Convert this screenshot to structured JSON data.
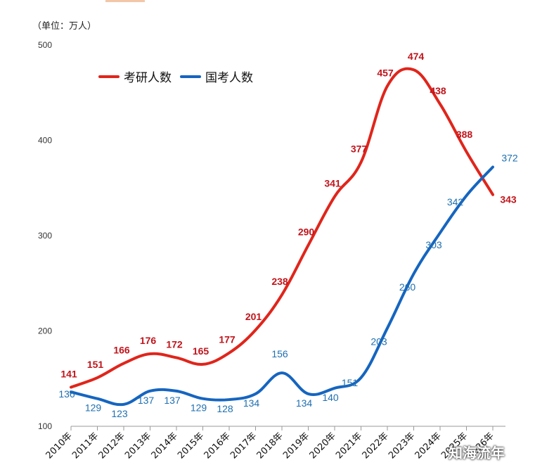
{
  "unit_label": "（单位：万人）",
  "watermark": "知海流年",
  "chart_data": {
    "type": "line",
    "categories": [
      "2010年",
      "2011年",
      "2012年",
      "2013年",
      "2014年",
      "2015年",
      "2016年",
      "2017年",
      "2018年",
      "2019年",
      "2020年",
      "2021年",
      "2022年",
      "2023年",
      "2024年",
      "2025年",
      "2026年"
    ],
    "ylim": [
      100,
      500
    ],
    "yticks": [
      100,
      200,
      300,
      400,
      500
    ],
    "grid": false,
    "legend_position": "top-left",
    "series": [
      {
        "name": "考研人数",
        "color": "#e0251b",
        "label_color": "#c0141b",
        "values": [
          141,
          151,
          166,
          176,
          172,
          165,
          177,
          201,
          238,
          290,
          341,
          377,
          457,
          474,
          438,
          388,
          343
        ]
      },
      {
        "name": "国考人数",
        "color": "#1565c0",
        "label_color": "#1e6fb0",
        "values": [
          136,
          129,
          123,
          137,
          137,
          129,
          128,
          134,
          156,
          134,
          140,
          151,
          203,
          260,
          303,
          342,
          372
        ]
      }
    ]
  }
}
